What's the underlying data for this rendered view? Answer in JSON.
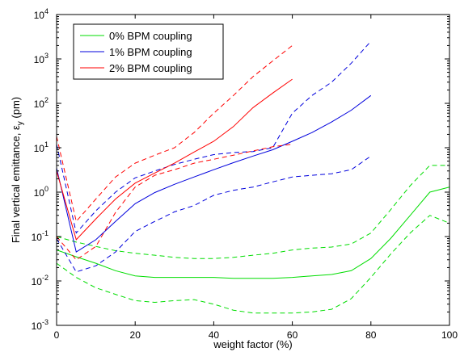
{
  "chart_data": {
    "type": "line",
    "title": "",
    "xlabel": "weight factor (%)",
    "ylabel": "Final vertical emittance, ε_y (pm)",
    "xlim": [
      0,
      100
    ],
    "ylim": [
      0.001,
      10000
    ],
    "yscale": "log",
    "grid": false,
    "legend_position": "top-left",
    "xticks": [
      "0",
      "20",
      "40",
      "60",
      "80",
      "100"
    ],
    "yticks": [
      {
        "base": "10",
        "exp": "-3"
      },
      {
        "base": "10",
        "exp": "-2"
      },
      {
        "base": "10",
        "exp": "-1"
      },
      {
        "base": "10",
        "exp": "0"
      },
      {
        "base": "10",
        "exp": "1"
      },
      {
        "base": "10",
        "exp": "2"
      },
      {
        "base": "10",
        "exp": "3"
      },
      {
        "base": "10",
        "exp": "4"
      }
    ],
    "series": [
      {
        "name": "0% BPM coupling",
        "color": "#00dd00",
        "x": [
          0,
          5,
          10,
          15,
          20,
          25,
          30,
          35,
          40,
          45,
          50,
          55,
          60,
          65,
          70,
          75,
          80,
          85,
          90,
          95,
          100
        ],
        "mean": [
          0.05,
          0.035,
          0.025,
          0.017,
          0.013,
          0.012,
          0.012,
          0.012,
          0.012,
          0.0115,
          0.0115,
          0.0115,
          0.012,
          0.013,
          0.014,
          0.017,
          0.032,
          0.09,
          0.3,
          1.0,
          1.3
        ],
        "upper": [
          0.1,
          0.075,
          0.06,
          0.048,
          0.042,
          0.038,
          0.034,
          0.032,
          0.032,
          0.034,
          0.038,
          0.042,
          0.05,
          0.055,
          0.058,
          0.068,
          0.12,
          0.4,
          1.4,
          4.0,
          4.0
        ],
        "lower": [
          0.025,
          0.012,
          0.007,
          0.005,
          0.0036,
          0.0033,
          0.0036,
          0.0038,
          0.003,
          0.0022,
          0.0019,
          0.0019,
          0.0019,
          0.002,
          0.0023,
          0.004,
          0.012,
          0.04,
          0.12,
          0.3,
          0.2
        ]
      },
      {
        "name": "1% BPM coupling",
        "color": "#0000dd",
        "x": [
          0,
          5,
          10,
          15,
          20,
          25,
          30,
          35,
          40,
          45,
          50,
          55,
          60,
          65,
          70,
          75,
          80
        ],
        "mean": [
          3.5,
          0.045,
          0.085,
          0.22,
          0.55,
          0.98,
          1.5,
          2.2,
          3.2,
          4.6,
          6.5,
          9.0,
          14,
          22,
          38,
          70,
          150
        ],
        "upper": [
          12,
          0.12,
          0.38,
          1.0,
          2.1,
          3.0,
          4.2,
          5.5,
          7.0,
          7.8,
          8.2,
          10,
          60,
          150,
          300,
          800,
          2500
        ],
        "lower": [
          0.09,
          0.016,
          0.022,
          0.045,
          0.13,
          0.22,
          0.36,
          0.5,
          0.85,
          1.1,
          1.3,
          1.7,
          2.2,
          2.4,
          2.6,
          3.2,
          6.5
        ]
      },
      {
        "name": "2% BPM coupling",
        "color": "#ff0000",
        "x": [
          0,
          5,
          10,
          15,
          20,
          25,
          30,
          35,
          40,
          45,
          50,
          55,
          60
        ],
        "mean": [
          3.0,
          0.085,
          0.25,
          0.7,
          1.6,
          2.7,
          4.5,
          8.0,
          14,
          30,
          80,
          170,
          350
        ],
        "upper": [
          18,
          0.22,
          0.7,
          2.2,
          4.5,
          6.8,
          10,
          22,
          60,
          150,
          400,
          900,
          2000
        ],
        "lower": [
          0.1,
          0.03,
          0.06,
          0.35,
          1.3,
          2.4,
          3.2,
          4.5,
          5.5,
          6.8,
          8.5,
          10.5,
          12
        ]
      }
    ]
  }
}
